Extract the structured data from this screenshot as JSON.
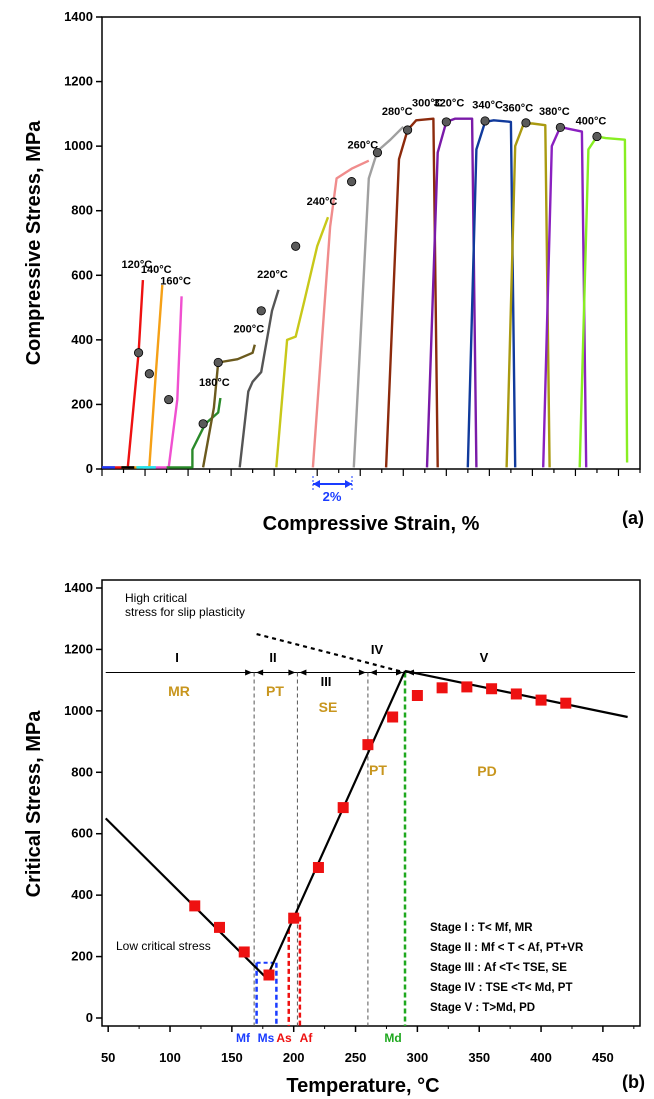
{
  "chart_data": [
    {
      "type": "line",
      "panel_label": "(a)",
      "xlabel": "Compressive Strain, %",
      "ylabel": "Compressive Stress, MPa",
      "ylim": [
        0,
        1400
      ],
      "yticks": [
        "0",
        "200",
        "400",
        "600",
        "800",
        "1000",
        "1200",
        "1400"
      ],
      "scale_bar_label": "2%",
      "grid": false,
      "series": [
        {
          "name": "120°C",
          "color": "#ee1111",
          "x": [
            0.0,
            0.9,
            1.2,
            1.2,
            1.7,
            1.9
          ],
          "y": [
            5,
            5,
            5,
            5,
            360,
            585
          ],
          "marker": [
            1.7,
            360
          ]
        },
        {
          "name": "140°C",
          "color": "#f5a016",
          "x": [
            0.9,
            1.4,
            2.2,
            2.2,
            2.5,
            2.8
          ],
          "y": [
            5,
            5,
            5,
            5,
            295,
            570
          ],
          "marker": [
            2.2,
            295
          ]
        },
        {
          "name": "160°C",
          "color": "#f050d0",
          "x": [
            1.9,
            2.9,
            3.1,
            3.5,
            3.7
          ],
          "y": [
            5,
            5,
            5,
            215,
            535
          ],
          "marker": [
            3.1,
            215
          ]
        },
        {
          "name": "180°C",
          "color": "#2a8a2a",
          "x": [
            3.0,
            4.2,
            4.2,
            4.8,
            5.4,
            5.5
          ],
          "y": [
            5,
            5,
            60,
            140,
            175,
            220
          ],
          "marker": [
            4.7,
            140
          ]
        },
        {
          "name": "200°C",
          "color": "#6b5a1e",
          "x": [
            4.7,
            5.2,
            5.4,
            6.3,
            7.0,
            7.1
          ],
          "y": [
            5,
            190,
            330,
            340,
            360,
            385
          ],
          "marker": [
            5.4,
            330
          ]
        },
        {
          "name": "220°C",
          "color": "#555555",
          "x": [
            6.4,
            6.8,
            7.0,
            7.4,
            7.9,
            8.2
          ],
          "y": [
            5,
            240,
            270,
            300,
            490,
            555
          ],
          "marker": [
            7.4,
            490
          ]
        },
        {
          "name": "240°C",
          "color": "#c8c819",
          "x": [
            8.1,
            8.6,
            9.0,
            9.4,
            10.0,
            10.5
          ],
          "y": [
            5,
            400,
            410,
            520,
            690,
            780
          ],
          "marker": [
            9.0,
            690
          ]
        },
        {
          "name": "260°C",
          "color": "#f08c8c",
          "x": [
            9.8,
            10.6,
            10.9,
            11.6,
            12.4
          ],
          "y": [
            5,
            750,
            900,
            930,
            955
          ],
          "marker": [
            11.6,
            890
          ]
        },
        {
          "name": "280°C",
          "color": "#a0a0a0",
          "x": [
            11.7,
            12.4,
            12.8,
            13.4,
            14.0
          ],
          "y": [
            5,
            900,
            985,
            1020,
            1060
          ],
          "marker": [
            12.8,
            980
          ]
        },
        {
          "name": "300°C",
          "color": "#8c2a0c",
          "x": [
            13.2,
            13.8,
            14.2,
            14.6,
            15.4,
            15.6
          ],
          "y": [
            5,
            960,
            1050,
            1080,
            1085,
            5
          ],
          "marker": [
            14.2,
            1050
          ]
        },
        {
          "name": "320°C",
          "color": "#7a1aa8",
          "x": [
            15.1,
            15.6,
            16.0,
            16.4,
            17.2,
            17.4
          ],
          "y": [
            5,
            980,
            1075,
            1085,
            1085,
            5
          ],
          "marker": [
            16.0,
            1075
          ]
        },
        {
          "name": "340°C",
          "color": "#103a9c",
          "x": [
            17.0,
            17.4,
            17.8,
            18.2,
            19.0,
            19.2
          ],
          "y": [
            5,
            990,
            1075,
            1080,
            1075,
            5
          ],
          "marker": [
            17.8,
            1078
          ]
        },
        {
          "name": "360°C",
          "color": "#aa9a10",
          "x": [
            18.8,
            19.2,
            19.6,
            20.0,
            20.6,
            20.8
          ],
          "y": [
            5,
            1000,
            1070,
            1070,
            1065,
            5
          ],
          "marker": [
            19.7,
            1072
          ]
        },
        {
          "name": "380°C",
          "color": "#8a20c0",
          "x": [
            20.5,
            20.9,
            21.3,
            21.6,
            22.3,
            22.5
          ],
          "y": [
            5,
            1000,
            1060,
            1055,
            1045,
            5
          ],
          "marker": [
            21.3,
            1058
          ]
        },
        {
          "name": "400°C",
          "color": "#88ee22",
          "x": [
            22.2,
            22.6,
            23.0,
            23.4,
            24.3,
            24.4
          ],
          "y": [
            5,
            990,
            1030,
            1025,
            1020,
            20
          ],
          "marker": [
            23.0,
            1030
          ]
        }
      ]
    },
    {
      "type": "scatter",
      "panel_label": "(b)",
      "xlabel": "Temperature, °C",
      "ylabel": "Critical Stress, MPa",
      "xlim": [
        45,
        480
      ],
      "ylim": [
        0,
        1400
      ],
      "xticks": [
        "50",
        "100",
        "150",
        "200",
        "250",
        "300",
        "350",
        "400",
        "450"
      ],
      "yticks": [
        "0",
        "200",
        "400",
        "600",
        "800",
        "1000",
        "1200",
        "1400"
      ],
      "points": {
        "x": [
          120,
          140,
          160,
          180,
          200,
          220,
          240,
          260,
          280,
          300,
          320,
          340,
          360,
          380,
          400,
          420
        ],
        "y": [
          365,
          295,
          215,
          140,
          325,
          490,
          685,
          890,
          980,
          1050,
          1075,
          1078,
          1072,
          1055,
          1035,
          1025
        ],
        "color": "#ee1111"
      },
      "fit_lines": [
        {
          "x": [
            48,
            178
          ],
          "y": [
            650,
            130
          ]
        },
        {
          "x": [
            178,
            290
          ],
          "y": [
            130,
            1130
          ]
        },
        {
          "x": [
            290,
            470
          ],
          "y": [
            1130,
            980
          ]
        }
      ],
      "slip_line": {
        "x": [
          170,
          290
        ],
        "y": [
          1250,
          1125
        ]
      },
      "horizontal_level": 1125,
      "annotations": {
        "slip_note_1": "High critical",
        "slip_note_2": "stress for slip plasticity",
        "low_note": "Low critical stress",
        "stages": [
          "I",
          "II",
          "III",
          "IV",
          "V"
        ],
        "regimes": [
          "MR",
          "PT",
          "SE",
          "PT",
          "PD"
        ],
        "temps": {
          "Mf": "Mf",
          "Ms": "Ms",
          "As": "As",
          "Af": "Af",
          "Md": "Md"
        },
        "legend": [
          "Stage I    : T< Mf, MR",
          "Stage II   : Mf < T < Af, PT+VR",
          "Stage III  : Af <T< TSE, SE",
          "Stage IV  : TSE <T< Md, PT",
          "Stage V   : T>Md, PD"
        ]
      }
    }
  ]
}
